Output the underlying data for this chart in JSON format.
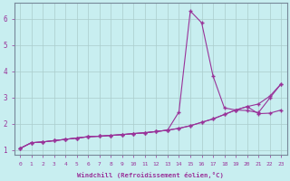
{
  "xlabel": "Windchill (Refroidissement éolien,°C)",
  "ylabel": "",
  "bg_color": "#c8eef0",
  "line_color": "#993399",
  "grid_color": "#aacccc",
  "xlim": [
    -0.5,
    23.5
  ],
  "ylim": [
    0.8,
    6.6
  ],
  "xticks": [
    0,
    1,
    2,
    3,
    4,
    5,
    6,
    7,
    8,
    9,
    10,
    11,
    12,
    13,
    14,
    15,
    16,
    17,
    18,
    19,
    20,
    21,
    22,
    23
  ],
  "yticks": [
    1,
    2,
    3,
    4,
    5,
    6
  ],
  "curve1_x": [
    0,
    1,
    2,
    3,
    4,
    5,
    6,
    7,
    8,
    9,
    10,
    11,
    12,
    13,
    14,
    15,
    16,
    17,
    18,
    19,
    20,
    21,
    22,
    23
  ],
  "curve1_y": [
    1.05,
    1.27,
    1.3,
    1.35,
    1.4,
    1.45,
    1.5,
    1.52,
    1.55,
    1.58,
    1.62,
    1.65,
    1.7,
    1.75,
    2.45,
    6.3,
    5.85,
    3.82,
    2.6,
    2.52,
    2.5,
    2.42,
    2.98,
    3.52
  ],
  "curve2_x": [
    0,
    1,
    2,
    3,
    4,
    5,
    6,
    7,
    8,
    9,
    10,
    11,
    12,
    13,
    14,
    15,
    16,
    17,
    18,
    19,
    20,
    21,
    22,
    23
  ],
  "curve2_y": [
    1.05,
    1.27,
    1.3,
    1.35,
    1.4,
    1.45,
    1.5,
    1.52,
    1.55,
    1.58,
    1.62,
    1.65,
    1.7,
    1.75,
    1.82,
    1.92,
    2.05,
    2.18,
    2.35,
    2.52,
    2.65,
    2.75,
    3.05,
    3.52
  ],
  "curve3_x": [
    0,
    1,
    2,
    3,
    4,
    5,
    6,
    7,
    8,
    9,
    10,
    11,
    12,
    13,
    14,
    15,
    16,
    17,
    18,
    19,
    20,
    21,
    22,
    23
  ],
  "curve3_y": [
    1.05,
    1.27,
    1.3,
    1.35,
    1.4,
    1.45,
    1.5,
    1.52,
    1.55,
    1.58,
    1.62,
    1.65,
    1.7,
    1.75,
    1.82,
    1.92,
    2.05,
    2.18,
    2.35,
    2.52,
    2.65,
    2.38,
    2.4,
    2.52
  ]
}
